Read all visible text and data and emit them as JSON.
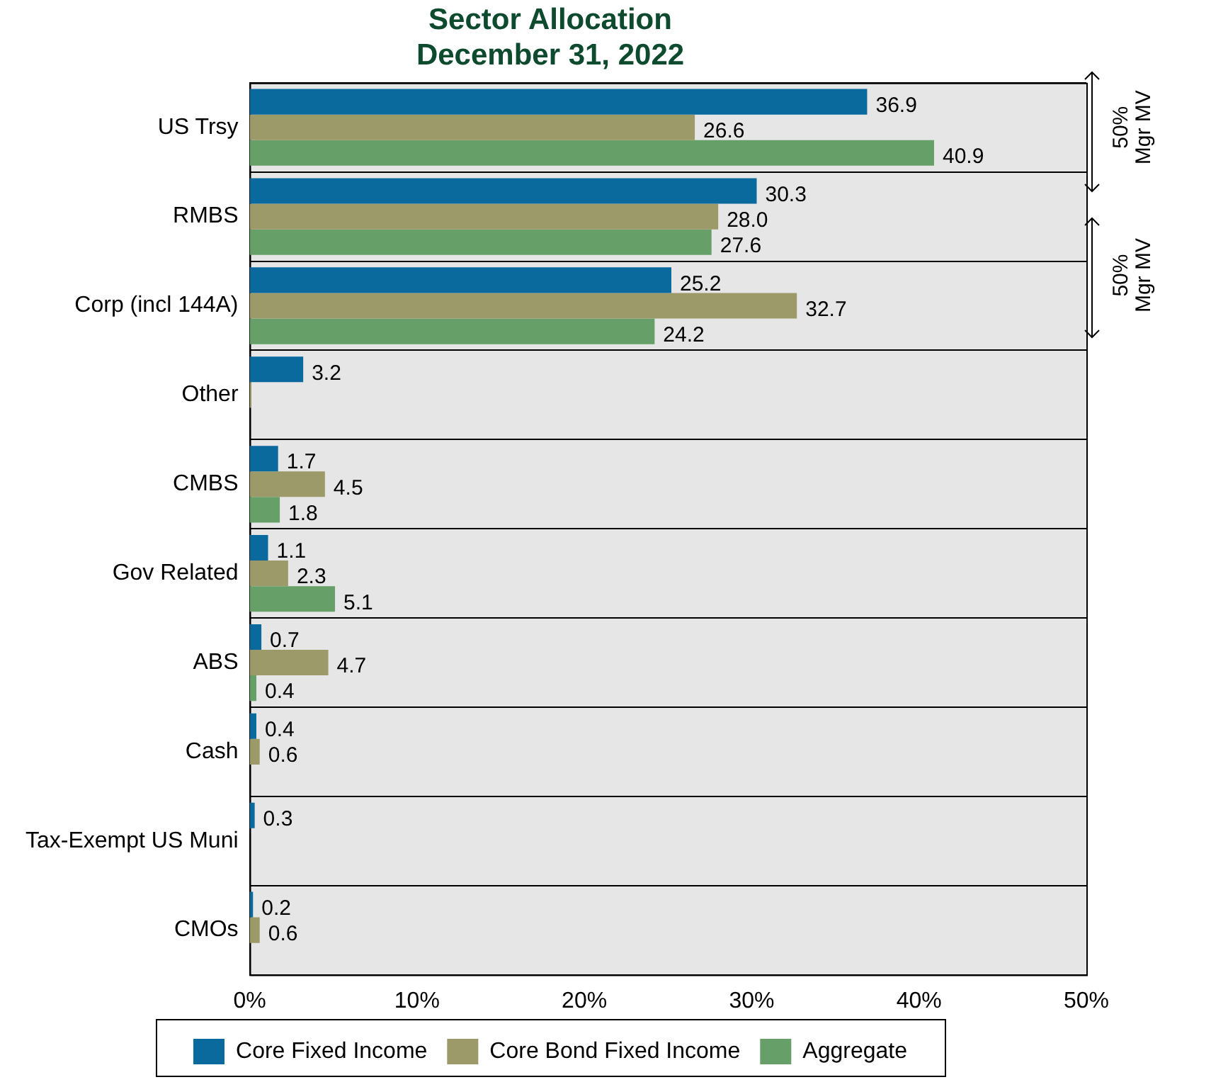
{
  "chart_data": {
    "type": "bar",
    "orientation": "horizontal",
    "title": "Sector Allocation\nDecember 31, 2022",
    "categories": [
      "US Trsy",
      "RMBS",
      "Corp (incl 144A)",
      "Other",
      "CMBS",
      "Gov Related",
      "ABS",
      "Cash",
      "Tax-Exempt US Muni",
      "CMOs"
    ],
    "series": [
      {
        "name": "Core Fixed Income",
        "color": "#0a6a9e",
        "values": [
          36.9,
          30.3,
          25.2,
          3.2,
          1.7,
          1.1,
          0.7,
          0.4,
          0.3,
          0.2
        ],
        "value_labels": [
          "36.9",
          "30.3",
          "25.2",
          "3.2",
          "1.7",
          "1.1",
          "0.7",
          "0.4",
          "0.3",
          "0.2"
        ]
      },
      {
        "name": "Core Bond Fixed Income",
        "color": "#9c9a68",
        "values": [
          26.6,
          28.0,
          32.7,
          0.1,
          4.5,
          2.3,
          4.7,
          0.6,
          0,
          0.6
        ],
        "value_labels": [
          "26.6",
          "28.0",
          "32.7",
          null,
          "4.5",
          "2.3",
          "4.7",
          "0.6",
          null,
          "0.6"
        ]
      },
      {
        "name": "Aggregate",
        "color": "#66a068",
        "values": [
          40.9,
          27.6,
          24.2,
          0,
          1.8,
          5.1,
          0.4,
          0,
          0,
          0
        ],
        "value_labels": [
          "40.9",
          "27.6",
          "24.2",
          null,
          "1.8",
          "5.1",
          "0.4",
          null,
          null,
          null
        ]
      }
    ],
    "xlim": [
      0,
      50
    ],
    "xticks": [
      {
        "value": 0,
        "label": "0%"
      },
      {
        "value": 10,
        "label": "10%"
      },
      {
        "value": 20,
        "label": "20%"
      },
      {
        "value": 30,
        "label": "30%"
      },
      {
        "value": 40,
        "label": "40%"
      },
      {
        "value": 50,
        "label": "50%"
      }
    ],
    "grid": "y",
    "legend": "bottom",
    "annotations": [
      "50%\nMgr MV",
      "50%\nMgr MV"
    ]
  }
}
